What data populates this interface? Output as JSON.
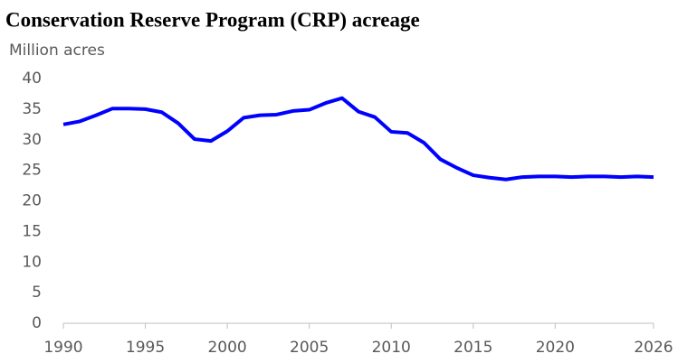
{
  "chart_data": {
    "type": "line",
    "title": "Conservation Reserve Program (CRP) acreage",
    "y_label": "Million acres",
    "x": [
      1990,
      1991,
      1992,
      1993,
      1994,
      1995,
      1996,
      1997,
      1998,
      1999,
      2000,
      2001,
      2002,
      2003,
      2004,
      2005,
      2006,
      2007,
      2008,
      2009,
      2010,
      2011,
      2012,
      2013,
      2014,
      2015,
      2016,
      2017,
      2018,
      2019,
      2020,
      2021,
      2022,
      2023,
      2024,
      2025,
      2026
    ],
    "series": [
      {
        "name": "CRP acreage",
        "color": "#0000ff",
        "values": [
          32.5,
          33.0,
          34.0,
          35.1,
          35.1,
          35.0,
          34.5,
          32.7,
          30.1,
          29.8,
          31.4,
          33.6,
          34.0,
          34.1,
          34.7,
          34.9,
          36.0,
          36.8,
          34.6,
          33.7,
          31.3,
          31.1,
          29.5,
          26.8,
          25.4,
          24.2,
          23.8,
          23.5,
          23.9,
          24.0,
          24.0,
          23.9,
          24.0,
          24.0,
          23.9,
          24.0,
          23.9
        ]
      }
    ],
    "xlim": [
      1990,
      2026
    ],
    "xticks": [
      1990,
      1995,
      2000,
      2005,
      2010,
      2015,
      2020,
      2026
    ],
    "ylim": [
      0,
      40
    ],
    "yticks": [
      0,
      5,
      10,
      15,
      20,
      25,
      30,
      35,
      40
    ],
    "grid": false
  }
}
